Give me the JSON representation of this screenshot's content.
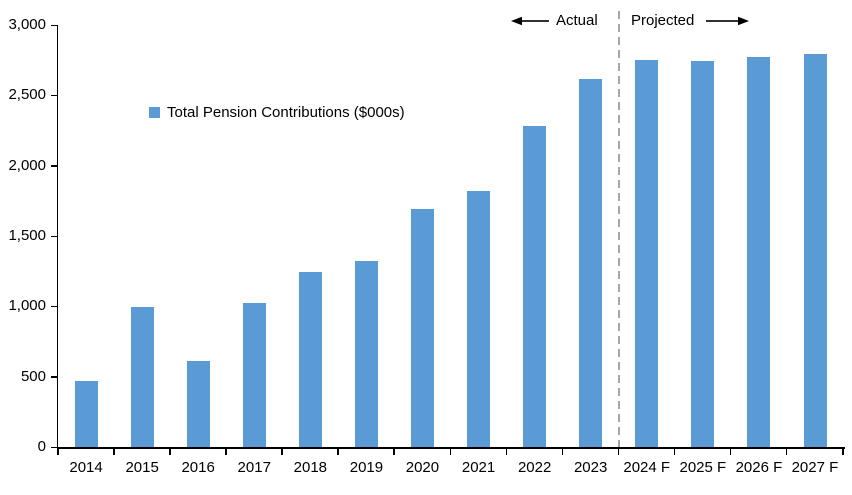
{
  "chart_data": {
    "type": "bar",
    "title": "",
    "legend": "Total Pension Contributions ($000s)",
    "legend_position": "inside-upper-left",
    "actual_label": "Actual",
    "projected_label": "Projected",
    "categories": [
      "2014",
      "2015",
      "2016",
      "2017",
      "2018",
      "2019",
      "2020",
      "2021",
      "2022",
      "2023",
      "2024 F",
      "2025 F",
      "2026 F",
      "2027 F"
    ],
    "values": [
      470,
      995,
      610,
      1025,
      1245,
      1325,
      1690,
      1820,
      2285,
      2620,
      2755,
      2745,
      2770,
      2795
    ],
    "xlabel": "",
    "ylabel": "",
    "ylim": [
      0,
      3000
    ],
    "ytick_values": [
      0,
      500,
      1000,
      1500,
      2000,
      2500,
      3000
    ],
    "ytick_labels": [
      "0",
      "500",
      "1,000",
      "1,500",
      "2,000",
      "2,500",
      "3,000"
    ],
    "grid": false,
    "bar_color": "#5B9BD5",
    "axis_color": "#000000",
    "divider_after_index": 9,
    "divider_color": "#A6A6A6",
    "actual_section_end_category": "2023",
    "projected_section_start_category": "2024 F"
  }
}
